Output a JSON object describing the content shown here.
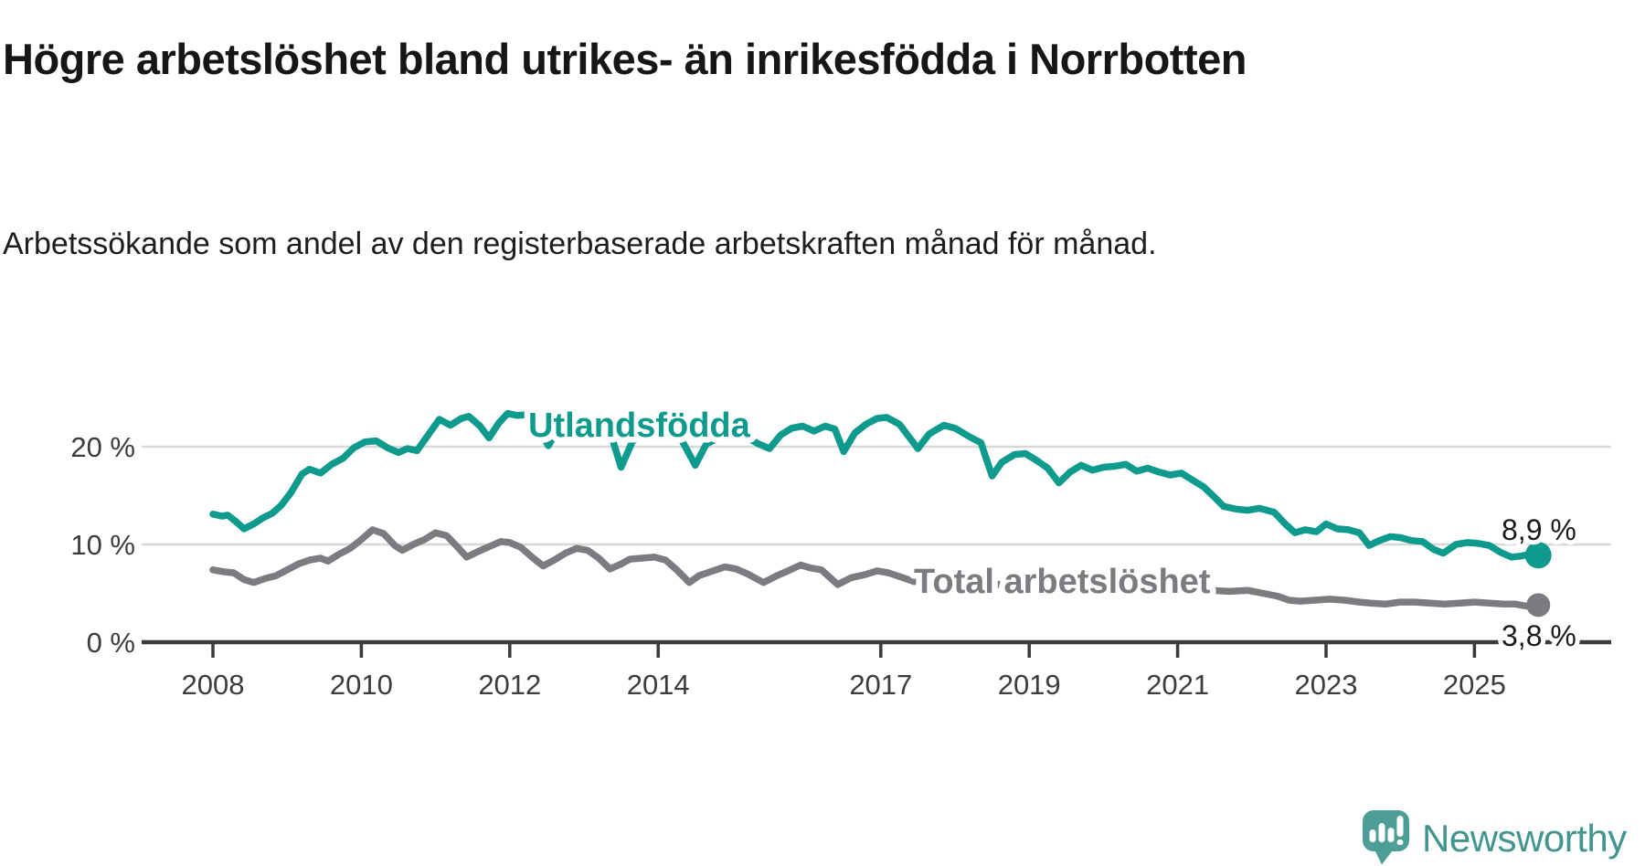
{
  "header": {
    "title": "Högre arbetslöshet bland utrikes- än inrikesfödda i Norrbotten",
    "subtitle": "Arbetssökande som andel av den registerbaserade arbetskraften månad för månad."
  },
  "chart_data": {
    "type": "line",
    "title": "Högre arbetslöshet bland utrikes- än inrikesfödda i Norrbotten",
    "subtitle": "Arbetssökande som andel av den registerbaserade arbetskraften månad för månad.",
    "grid": true,
    "legend_position": "inline-labels",
    "x_axis": {
      "ticks": [
        2008,
        2010,
        2012,
        2014,
        2017,
        2019,
        2021,
        2023,
        2025
      ],
      "range": [
        2008,
        2025.9
      ]
    },
    "y_axis": {
      "unit": "%",
      "range": [
        0,
        24.5
      ],
      "ticks": [
        {
          "value": 0,
          "label": "0 %"
        },
        {
          "value": 10,
          "label": "10 %"
        },
        {
          "value": 20,
          "label": "20 %"
        }
      ]
    },
    "colors": {
      "foreign_born": "#0e9a8d",
      "total": "#7b7b80",
      "grid": "#d8d8d8",
      "axis": "#3a3a3e",
      "value_label": "#1a1a1a"
    },
    "series": [
      {
        "name": "Utlandsfödda",
        "color": "#0e9a8d",
        "end_label": "8,9 %",
        "end_value": 8.9,
        "points": [
          [
            2008.0,
            13.1
          ],
          [
            2008.12,
            12.9
          ],
          [
            2008.2,
            13.0
          ],
          [
            2008.3,
            12.4
          ],
          [
            2008.42,
            11.6
          ],
          [
            2008.55,
            12.1
          ],
          [
            2008.67,
            12.7
          ],
          [
            2008.8,
            13.2
          ],
          [
            2008.92,
            14.0
          ],
          [
            2009.05,
            15.3
          ],
          [
            2009.2,
            17.2
          ],
          [
            2009.3,
            17.7
          ],
          [
            2009.45,
            17.3
          ],
          [
            2009.6,
            18.2
          ],
          [
            2009.75,
            18.8
          ],
          [
            2009.9,
            19.9
          ],
          [
            2010.05,
            20.5
          ],
          [
            2010.2,
            20.6
          ],
          [
            2010.35,
            19.9
          ],
          [
            2010.5,
            19.4
          ],
          [
            2010.62,
            19.8
          ],
          [
            2010.75,
            19.6
          ],
          [
            2010.9,
            21.2
          ],
          [
            2011.05,
            22.8
          ],
          [
            2011.2,
            22.2
          ],
          [
            2011.35,
            22.9
          ],
          [
            2011.45,
            23.1
          ],
          [
            2011.6,
            22.1
          ],
          [
            2011.72,
            20.9
          ],
          [
            2011.85,
            22.4
          ],
          [
            2011.97,
            23.4
          ],
          [
            2012.1,
            23.2
          ],
          [
            2012.3,
            23.3
          ],
          [
            2012.42,
            21.4
          ],
          [
            2012.52,
            20.1
          ],
          [
            2012.67,
            22.0
          ],
          [
            2012.85,
            22.7
          ],
          [
            2013.0,
            23.1
          ],
          [
            2013.2,
            22.6
          ],
          [
            2013.35,
            21.6
          ],
          [
            2013.5,
            17.9
          ],
          [
            2013.65,
            20.5
          ],
          [
            2013.85,
            22.0
          ],
          [
            2014.0,
            22.3
          ],
          [
            2014.15,
            21.8
          ],
          [
            2014.3,
            20.9
          ],
          [
            2014.5,
            18.1
          ],
          [
            2014.65,
            20.3
          ],
          [
            2014.85,
            21.0
          ],
          [
            2015.0,
            21.4
          ],
          [
            2015.18,
            21.0
          ],
          [
            2015.35,
            20.3
          ],
          [
            2015.5,
            19.8
          ],
          [
            2015.65,
            21.2
          ],
          [
            2015.8,
            21.9
          ],
          [
            2015.95,
            22.1
          ],
          [
            2016.1,
            21.6
          ],
          [
            2016.25,
            22.1
          ],
          [
            2016.38,
            21.8
          ],
          [
            2016.5,
            19.5
          ],
          [
            2016.65,
            21.4
          ],
          [
            2016.8,
            22.3
          ],
          [
            2016.95,
            22.9
          ],
          [
            2017.08,
            23.0
          ],
          [
            2017.25,
            22.3
          ],
          [
            2017.4,
            20.8
          ],
          [
            2017.5,
            19.8
          ],
          [
            2017.65,
            21.3
          ],
          [
            2017.85,
            22.2
          ],
          [
            2018.0,
            21.9
          ],
          [
            2018.2,
            21.0
          ],
          [
            2018.35,
            20.4
          ],
          [
            2018.5,
            17.0
          ],
          [
            2018.63,
            18.4
          ],
          [
            2018.8,
            19.2
          ],
          [
            2018.95,
            19.3
          ],
          [
            2019.1,
            18.6
          ],
          [
            2019.25,
            17.8
          ],
          [
            2019.4,
            16.3
          ],
          [
            2019.55,
            17.4
          ],
          [
            2019.7,
            18.1
          ],
          [
            2019.85,
            17.6
          ],
          [
            2020.0,
            17.9
          ],
          [
            2020.15,
            18.0
          ],
          [
            2020.3,
            18.2
          ],
          [
            2020.45,
            17.5
          ],
          [
            2020.6,
            17.8
          ],
          [
            2020.75,
            17.4
          ],
          [
            2020.9,
            17.1
          ],
          [
            2021.05,
            17.3
          ],
          [
            2021.2,
            16.6
          ],
          [
            2021.35,
            15.9
          ],
          [
            2021.5,
            14.8
          ],
          [
            2021.62,
            13.9
          ],
          [
            2021.8,
            13.6
          ],
          [
            2021.95,
            13.5
          ],
          [
            2022.1,
            13.7
          ],
          [
            2022.3,
            13.3
          ],
          [
            2022.45,
            12.1
          ],
          [
            2022.58,
            11.2
          ],
          [
            2022.72,
            11.5
          ],
          [
            2022.87,
            11.3
          ],
          [
            2023.0,
            12.1
          ],
          [
            2023.15,
            11.6
          ],
          [
            2023.3,
            11.5
          ],
          [
            2023.45,
            11.2
          ],
          [
            2023.58,
            9.9
          ],
          [
            2023.72,
            10.4
          ],
          [
            2023.87,
            10.8
          ],
          [
            2024.0,
            10.7
          ],
          [
            2024.15,
            10.4
          ],
          [
            2024.3,
            10.3
          ],
          [
            2024.45,
            9.5
          ],
          [
            2024.58,
            9.1
          ],
          [
            2024.75,
            10.0
          ],
          [
            2024.9,
            10.2
          ],
          [
            2025.05,
            10.1
          ],
          [
            2025.2,
            9.9
          ],
          [
            2025.35,
            9.2
          ],
          [
            2025.5,
            8.7
          ],
          [
            2025.62,
            8.8
          ],
          [
            2025.75,
            9.0
          ],
          [
            2025.86,
            8.9
          ]
        ]
      },
      {
        "name": "Total arbetslöshet",
        "color": "#7b7b80",
        "end_label": "3,8 %",
        "end_value": 3.8,
        "points": [
          [
            2008.0,
            7.4
          ],
          [
            2008.15,
            7.2
          ],
          [
            2008.28,
            7.1
          ],
          [
            2008.42,
            6.4
          ],
          [
            2008.55,
            6.1
          ],
          [
            2008.7,
            6.5
          ],
          [
            2008.85,
            6.8
          ],
          [
            2009.0,
            7.4
          ],
          [
            2009.15,
            8.0
          ],
          [
            2009.3,
            8.4
          ],
          [
            2009.45,
            8.6
          ],
          [
            2009.55,
            8.3
          ],
          [
            2009.7,
            9.0
          ],
          [
            2009.85,
            9.6
          ],
          [
            2010.0,
            10.5
          ],
          [
            2010.15,
            11.5
          ],
          [
            2010.3,
            11.1
          ],
          [
            2010.45,
            9.9
          ],
          [
            2010.55,
            9.4
          ],
          [
            2010.7,
            10.0
          ],
          [
            2010.85,
            10.5
          ],
          [
            2011.0,
            11.2
          ],
          [
            2011.15,
            10.9
          ],
          [
            2011.3,
            9.7
          ],
          [
            2011.42,
            8.7
          ],
          [
            2011.55,
            9.2
          ],
          [
            2011.7,
            9.7
          ],
          [
            2011.88,
            10.3
          ],
          [
            2012.0,
            10.2
          ],
          [
            2012.15,
            9.7
          ],
          [
            2012.3,
            8.7
          ],
          [
            2012.45,
            7.8
          ],
          [
            2012.6,
            8.4
          ],
          [
            2012.75,
            9.1
          ],
          [
            2012.9,
            9.6
          ],
          [
            2013.05,
            9.4
          ],
          [
            2013.2,
            8.6
          ],
          [
            2013.35,
            7.5
          ],
          [
            2013.5,
            8.0
          ],
          [
            2013.62,
            8.5
          ],
          [
            2013.78,
            8.6
          ],
          [
            2013.95,
            8.7
          ],
          [
            2014.1,
            8.4
          ],
          [
            2014.25,
            7.4
          ],
          [
            2014.42,
            6.1
          ],
          [
            2014.55,
            6.8
          ],
          [
            2014.7,
            7.2
          ],
          [
            2014.9,
            7.7
          ],
          [
            2015.05,
            7.5
          ],
          [
            2015.2,
            7.0
          ],
          [
            2015.42,
            6.1
          ],
          [
            2015.6,
            6.8
          ],
          [
            2015.75,
            7.3
          ],
          [
            2015.92,
            7.9
          ],
          [
            2016.05,
            7.6
          ],
          [
            2016.2,
            7.4
          ],
          [
            2016.42,
            5.9
          ],
          [
            2016.6,
            6.6
          ],
          [
            2016.78,
            6.9
          ],
          [
            2016.95,
            7.3
          ],
          [
            2017.1,
            7.1
          ],
          [
            2017.3,
            6.6
          ],
          [
            2017.45,
            6.2
          ],
          [
            2017.6,
            6.6
          ],
          [
            2017.8,
            6.9
          ],
          [
            2018.0,
            6.8
          ],
          [
            2018.2,
            6.3
          ],
          [
            2018.45,
            5.7
          ],
          [
            2018.65,
            6.0
          ],
          [
            2018.9,
            6.3
          ],
          [
            2019.1,
            6.1
          ],
          [
            2019.45,
            5.4
          ],
          [
            2019.7,
            5.7
          ],
          [
            2019.95,
            6.0
          ],
          [
            2020.2,
            6.6
          ],
          [
            2020.45,
            6.9
          ],
          [
            2020.7,
            6.6
          ],
          [
            2020.95,
            6.4
          ],
          [
            2021.2,
            5.9
          ],
          [
            2021.45,
            5.3
          ],
          [
            2021.7,
            5.2
          ],
          [
            2021.95,
            5.3
          ],
          [
            2022.15,
            5.0
          ],
          [
            2022.35,
            4.7
          ],
          [
            2022.5,
            4.3
          ],
          [
            2022.65,
            4.2
          ],
          [
            2022.85,
            4.3
          ],
          [
            2023.05,
            4.4
          ],
          [
            2023.25,
            4.3
          ],
          [
            2023.45,
            4.1
          ],
          [
            2023.6,
            4.0
          ],
          [
            2023.8,
            3.9
          ],
          [
            2024.0,
            4.1
          ],
          [
            2024.2,
            4.1
          ],
          [
            2024.4,
            4.0
          ],
          [
            2024.6,
            3.9
          ],
          [
            2024.8,
            4.0
          ],
          [
            2025.0,
            4.1
          ],
          [
            2025.2,
            4.0
          ],
          [
            2025.4,
            3.9
          ],
          [
            2025.55,
            3.9
          ],
          [
            2025.7,
            3.7
          ],
          [
            2025.86,
            3.8
          ]
        ]
      }
    ]
  },
  "footer": {
    "logo_text": "Newsworthy",
    "logo_color": "#4c9e97",
    "logo_icon": "bar-chart-speech-bubble"
  }
}
